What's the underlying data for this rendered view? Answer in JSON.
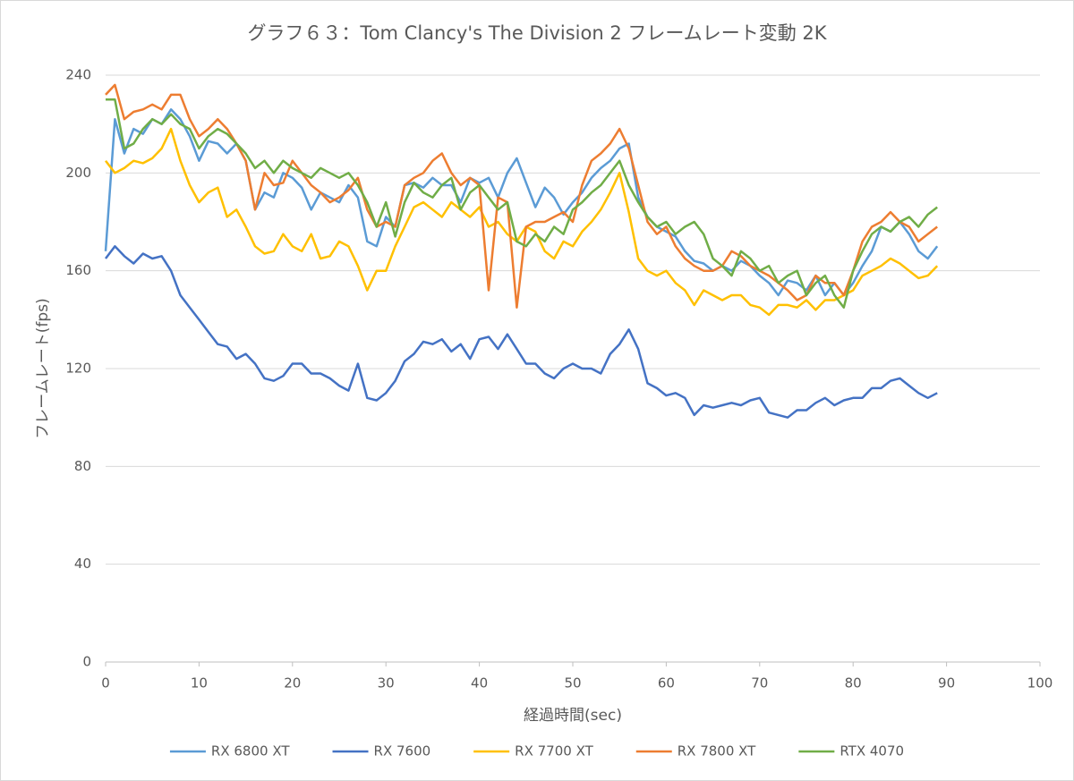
{
  "chart_data": {
    "type": "line",
    "title": "グラフ６３：Tom Clancy's The Division 2 フレームレート変動 2K",
    "x_label": "経過時間(sec)",
    "y_label": "フレームレート(fps)",
    "x": [
      0,
      1,
      2,
      3,
      4,
      5,
      6,
      7,
      8,
      9,
      10,
      11,
      12,
      13,
      14,
      15,
      16,
      17,
      18,
      19,
      20,
      21,
      22,
      23,
      24,
      25,
      26,
      27,
      28,
      29,
      30,
      31,
      32,
      33,
      34,
      35,
      36,
      37,
      38,
      39,
      40,
      41,
      42,
      43,
      44,
      45,
      46,
      47,
      48,
      49,
      50,
      51,
      52,
      53,
      54,
      55,
      56,
      57,
      58,
      59,
      60,
      61,
      62,
      63,
      64,
      65,
      66,
      67,
      68,
      69,
      70,
      71,
      72,
      73,
      74,
      75,
      76,
      77,
      78,
      79,
      80,
      81,
      82,
      83,
      84,
      85,
      86,
      87,
      88,
      89
    ],
    "series": [
      {
        "name": "RX 6800 XT",
        "color": "#5b9bd5",
        "values": [
          168,
          222,
          208,
          218,
          216,
          222,
          220,
          226,
          222,
          215,
          205,
          213,
          212,
          208,
          212,
          205,
          185,
          192,
          190,
          200,
          198,
          194,
          185,
          192,
          190,
          188,
          195,
          190,
          172,
          170,
          182,
          178,
          195,
          196,
          194,
          198,
          195,
          195,
          188,
          198,
          196,
          198,
          190,
          200,
          206,
          196,
          186,
          194,
          190,
          183,
          188,
          192,
          198,
          202,
          205,
          210,
          212,
          190,
          182,
          178,
          176,
          174,
          168,
          164,
          163,
          160,
          162,
          160,
          164,
          162,
          158,
          155,
          150,
          156,
          155,
          152,
          158,
          150,
          155,
          150,
          155,
          162,
          168,
          178,
          176,
          180,
          175,
          168,
          165,
          170
        ]
      },
      {
        "name": "RX 7600",
        "color": "#4472c4",
        "values": [
          165,
          170,
          166,
          163,
          167,
          165,
          166,
          160,
          150,
          145,
          140,
          135,
          130,
          129,
          124,
          126,
          122,
          116,
          115,
          117,
          122,
          122,
          118,
          118,
          116,
          113,
          111,
          122,
          108,
          107,
          110,
          115,
          123,
          126,
          131,
          130,
          132,
          127,
          130,
          124,
          132,
          133,
          128,
          134,
          128,
          122,
          122,
          118,
          116,
          120,
          122,
          120,
          120,
          118,
          126,
          130,
          136,
          128,
          114,
          112,
          109,
          110,
          108,
          101,
          105,
          104,
          105,
          106,
          105,
          107,
          108,
          102,
          101,
          100,
          103,
          103,
          106,
          108,
          105,
          107,
          108,
          108,
          112,
          112,
          115,
          116,
          113,
          110,
          108,
          110
        ]
      },
      {
        "name": "RX 7700 XT",
        "color": "#ffc000",
        "values": [
          205,
          200,
          202,
          205,
          204,
          206,
          210,
          218,
          205,
          195,
          188,
          192,
          194,
          182,
          185,
          178,
          170,
          167,
          168,
          175,
          170,
          168,
          175,
          165,
          166,
          172,
          170,
          162,
          152,
          160,
          160,
          170,
          178,
          186,
          188,
          185,
          182,
          188,
          185,
          182,
          186,
          178,
          180,
          175,
          172,
          178,
          176,
          168,
          165,
          172,
          170,
          176,
          180,
          185,
          192,
          200,
          184,
          165,
          160,
          158,
          160,
          155,
          152,
          146,
          152,
          150,
          148,
          150,
          150,
          146,
          145,
          142,
          146,
          146,
          145,
          148,
          144,
          148,
          148,
          150,
          152,
          158,
          160,
          162,
          165,
          163,
          160,
          157,
          158,
          162
        ]
      },
      {
        "name": "RX 7800 XT",
        "color": "#ed7d31",
        "values": [
          232,
          236,
          222,
          225,
          226,
          228,
          226,
          232,
          232,
          222,
          215,
          218,
          222,
          218,
          212,
          205,
          185,
          200,
          195,
          196,
          205,
          200,
          195,
          192,
          188,
          190,
          193,
          198,
          185,
          178,
          180,
          178,
          195,
          198,
          200,
          205,
          208,
          200,
          195,
          198,
          195,
          152,
          190,
          188,
          145,
          178,
          180,
          180,
          182,
          184,
          180,
          195,
          205,
          208,
          212,
          218,
          210,
          195,
          180,
          175,
          178,
          170,
          165,
          162,
          160,
          160,
          162,
          168,
          166,
          162,
          160,
          158,
          155,
          152,
          148,
          150,
          158,
          155,
          155,
          150,
          160,
          172,
          178,
          180,
          184,
          180,
          178,
          172,
          175,
          178
        ]
      },
      {
        "name": "RTX 4070",
        "color": "#70ad47",
        "values": [
          230,
          230,
          210,
          212,
          218,
          222,
          220,
          224,
          220,
          218,
          210,
          215,
          218,
          216,
          212,
          208,
          202,
          205,
          200,
          205,
          202,
          200,
          198,
          202,
          200,
          198,
          200,
          195,
          188,
          178,
          188,
          174,
          188,
          196,
          192,
          190,
          195,
          198,
          185,
          192,
          195,
          190,
          185,
          188,
          172,
          170,
          175,
          172,
          178,
          175,
          185,
          188,
          192,
          195,
          200,
          205,
          195,
          188,
          182,
          178,
          180,
          175,
          178,
          180,
          175,
          165,
          162,
          158,
          168,
          165,
          160,
          162,
          155,
          158,
          160,
          150,
          155,
          158,
          150,
          145,
          160,
          168,
          175,
          178,
          176,
          180,
          182,
          178,
          183,
          186
        ]
      }
    ],
    "xlim": [
      0,
      100
    ],
    "xticks": [
      0,
      10,
      20,
      30,
      40,
      50,
      60,
      70,
      80,
      90,
      100
    ],
    "ylim": [
      0,
      240
    ],
    "yticks": [
      0,
      40,
      80,
      120,
      160,
      200,
      240
    ],
    "grid": true,
    "legend": "bottom"
  }
}
